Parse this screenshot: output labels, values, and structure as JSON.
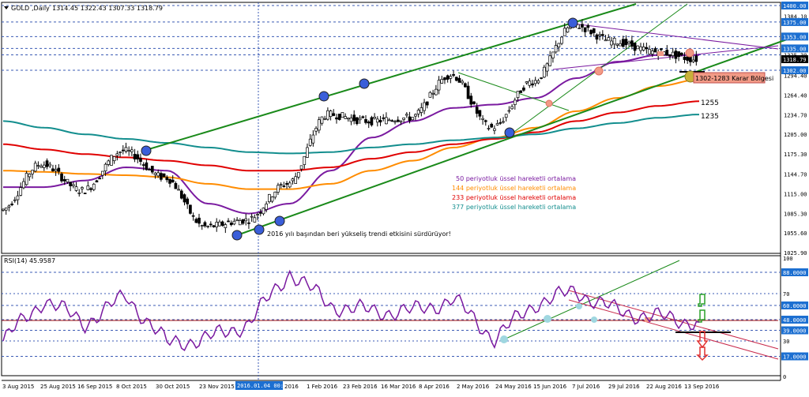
{
  "header": {
    "symbol_text": "GOLD",
    "timeframe_text": ",Daily",
    "ohlc_text": "1314.45 1322.43 1307.33 1318.79"
  },
  "rsi_header": {
    "label": "RSI(14) 45.9587"
  },
  "colors": {
    "ema50": "#7a1aa0",
    "ema144": "#ff8c00",
    "ema233": "#e00000",
    "ema377": "#138e8e",
    "channel": "#1a8a1a",
    "candle": "#000000",
    "grid": "#3b5bb5",
    "price_tag_bg": "#1c6fd1",
    "current_tag_bg": "#000000",
    "rsi_line": "#7a1aa0"
  },
  "legend": {
    "ema50": "50 periyotluk üssel hareketli ortalama",
    "ema144": "144 periyotluk üssel hareketli ortalama",
    "ema233": "233 periyotluk üssel hareketli ortalama",
    "ema377": "377 periyotluk üssel hareketli ortalama"
  },
  "annotations": {
    "trend_note": "2016 yılı başından beri yükseliş trendi etkisini sürdürüyor!",
    "zone_label": "1302-1283 Karar Bölgesi",
    "ema233_value": "1255",
    "ema377_value": "1235"
  },
  "price_axis": {
    "ticks": [
      "1400.00",
      "1384.10",
      "1375.00",
      "1353.00",
      "1335.00",
      "1325.30",
      "1302.00",
      "1294.40",
      "1264.40",
      "1234.70",
      "1205.00",
      "1175.30",
      "1144.70",
      "1115.00",
      "1085.30",
      "1055.60",
      "1025.90"
    ],
    "current": "1318.79"
  },
  "rsi_axis": {
    "ticks": [
      "100",
      "88.0000",
      "70",
      "60.0000",
      "48.0000",
      "39.0000",
      "30",
      "17.0000",
      "0"
    ]
  },
  "time_axis": {
    "labels": [
      "3 Aug 2015",
      "25 Aug 2015",
      "16 Sep 2015",
      "8 Oct 2015",
      "30 Oct 2015",
      "23 Nov 2015",
      "15",
      "2016.01.04 00:00",
      "2016",
      "1 Feb 2016",
      "23 Feb 2016",
      "16 Mar 2016",
      "8 Apr 2016",
      "2 May 2016",
      "24 May 2016",
      "15 Jun 2016",
      "7 Jul 2016",
      "29 Jul 2016",
      "22 Aug 2016",
      "13 Sep 2016"
    ]
  },
  "chart_data": [
    {
      "type": "line",
      "title": "GOLD, Daily",
      "ylim": [
        1025.9,
        1400
      ],
      "x": [
        "3 Aug 2015",
        "25 Aug 2015",
        "16 Sep 2015",
        "8 Oct 2015",
        "30 Oct 2015",
        "23 Nov 2015",
        "2016.01.04",
        "1 Feb 2016",
        "23 Feb 2016",
        "16 Mar 2016",
        "8 Apr 2016",
        "2 May 2016",
        "24 May 2016",
        "15 Jun 2016",
        "7 Jul 2016",
        "29 Jul 2016",
        "22 Aug 2016",
        "13 Sep 2016"
      ],
      "series": [
        {
          "name": "GOLD",
          "values": [
            1090,
            1160,
            1120,
            1180,
            1140,
            1065,
            1075,
            1130,
            1235,
            1225,
            1230,
            1295,
            1215,
            1285,
            1370,
            1345,
            1330,
            1318.79
          ]
        },
        {
          "name": "50 periyotluk üssel hareketli ortalama",
          "values": [
            1125,
            1125,
            1135,
            1155,
            1150,
            1100,
            1085,
            1100,
            1150,
            1200,
            1225,
            1245,
            1250,
            1260,
            1290,
            1315,
            1325,
            1325
          ]
        },
        {
          "name": "144 periyotluk üssel hareketli ortalama",
          "values": [
            1150,
            1148,
            1145,
            1143,
            1140,
            1130,
            1122,
            1122,
            1130,
            1150,
            1165,
            1185,
            1200,
            1215,
            1240,
            1260,
            1278,
            1288
          ]
        },
        {
          "name": "233 periyotluk üssel hareketli ortalama",
          "values": [
            1190,
            1182,
            1175,
            1170,
            1165,
            1158,
            1150,
            1150,
            1155,
            1168,
            1178,
            1190,
            1198,
            1208,
            1225,
            1238,
            1248,
            1255
          ]
        },
        {
          "name": "377 periyotluk üssel hareketli ortalama",
          "values": [
            1225,
            1215,
            1205,
            1198,
            1192,
            1185,
            1178,
            1176,
            1178,
            1185,
            1190,
            1196,
            1200,
            1205,
            1214,
            1222,
            1230,
            1235
          ]
        }
      ],
      "horizontal_levels": [
        1400,
        1375,
        1353,
        1335,
        1325.3,
        1302,
        1283
      ],
      "annotations": [
        "2016 yılı başından beri yükseliş trendi etkisini sürdürüyor!",
        "1302-1283 Karar Bölgesi",
        "1255",
        "1235"
      ]
    },
    {
      "type": "line",
      "title": "RSI(14) 45.9587",
      "ylim": [
        0,
        100
      ],
      "x": [
        "3 Aug 2015",
        "25 Aug 2015",
        "16 Sep 2015",
        "8 Oct 2015",
        "30 Oct 2015",
        "23 Nov 2015",
        "2016.01.04",
        "1 Feb 2016",
        "23 Feb 2016",
        "16 Mar 2016",
        "8 Apr 2016",
        "2 May 2016",
        "24 May 2016",
        "15 Jun 2016",
        "7 Jul 2016",
        "29 Jul 2016",
        "22 Aug 2016",
        "13 Sep 2016"
      ],
      "series": [
        {
          "name": "RSI(14)",
          "values": [
            30,
            65,
            45,
            68,
            28,
            32,
            45,
            88,
            60,
            55,
            55,
            65,
            32,
            62,
            72,
            55,
            50,
            45.96
          ]
        }
      ],
      "horizontal_levels": [
        88,
        60,
        48,
        39,
        17
      ]
    }
  ]
}
